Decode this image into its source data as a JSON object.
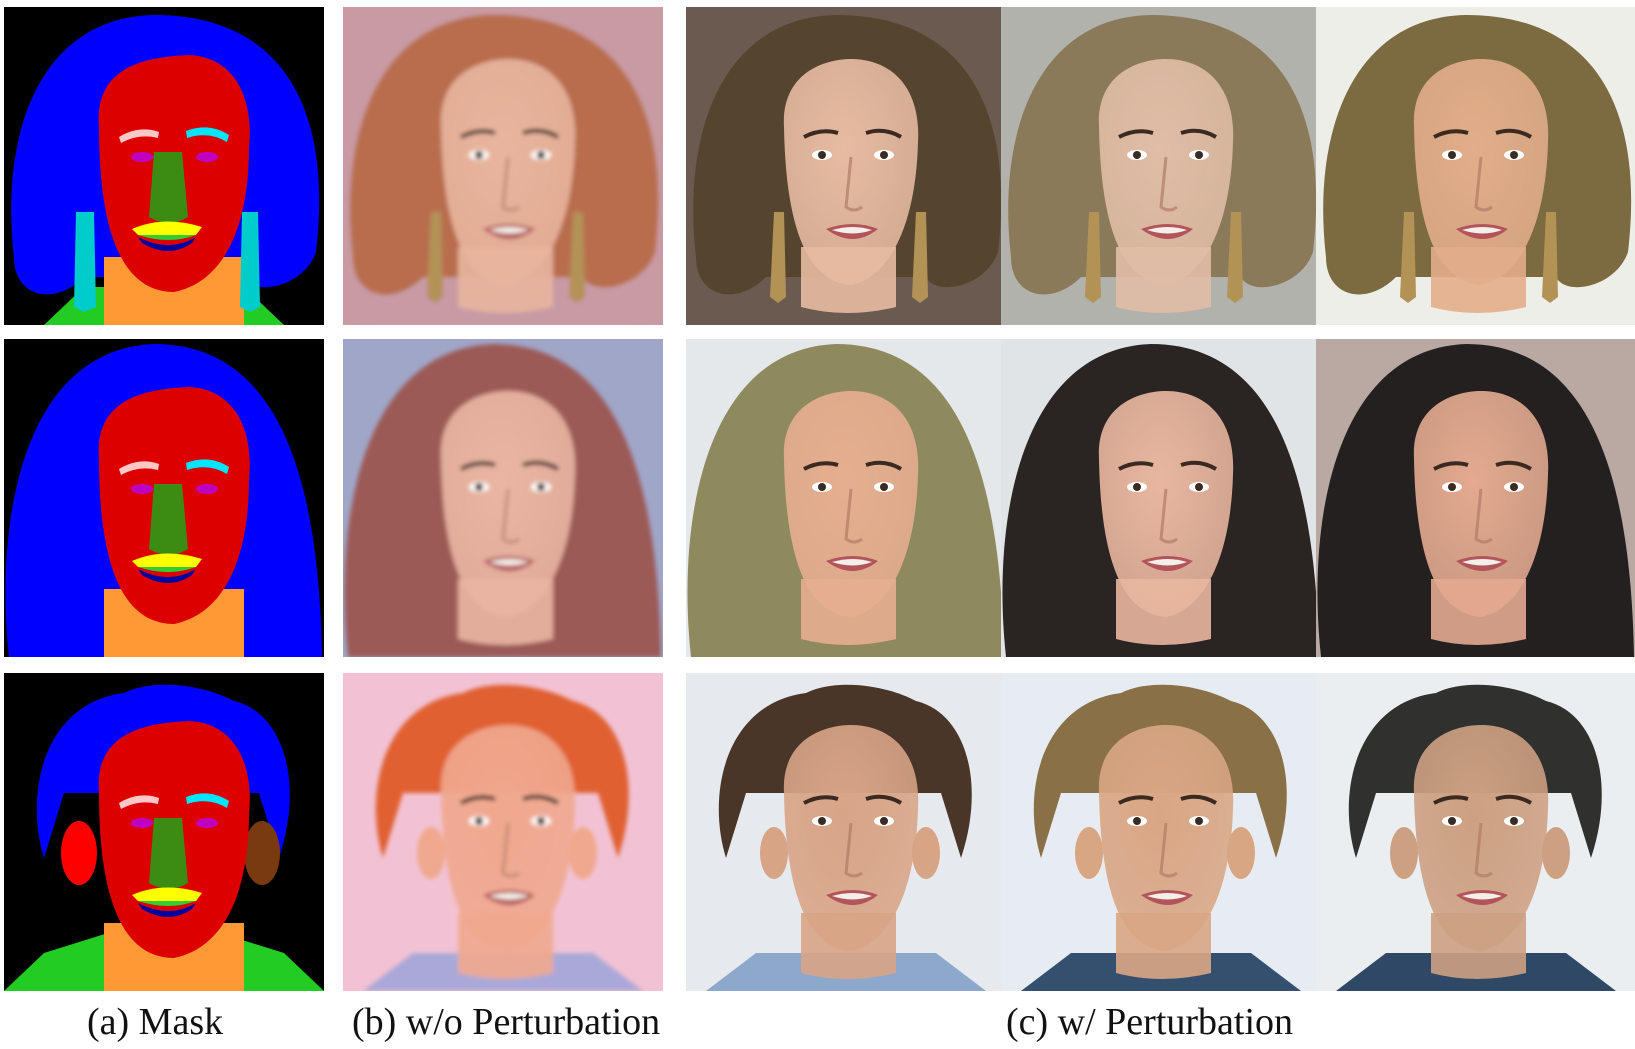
{
  "figure": {
    "captions": {
      "a": "(a) Mask",
      "b": "(b) w/o Perturbation",
      "c": "(c) w/ Perturbation"
    }
  },
  "colors": {
    "mask_background": "#000000",
    "mask_hair": "#0000ff",
    "mask_skin": "#dd0000",
    "mask_nose": "#3c8c14",
    "mask_neck": "#ff9933",
    "mask_cloth": "#22cc22",
    "mask_earring": "#00cccc",
    "mask_ear": "#ff0000",
    "mask_left_brow": "#ffc8c8",
    "mask_right_brow": "#00e6ff",
    "mask_eye": "#c000c0",
    "mask_upper_lip": "#ffff00",
    "mask_lower_lip": "#0000a0",
    "mask_mouth": "#33cc33"
  },
  "rows": [
    {
      "id": "row-1",
      "hair_style": "bob",
      "has_earrings": true,
      "wo_perturbation": {
        "background": "#c89aa4",
        "hair": "#b86d4e",
        "skin": "#e8b59e",
        "cloth": "#c89aa4",
        "blurred": true
      },
      "w_perturbation": [
        {
          "background": "#6b5a50",
          "hair": "#55452f",
          "skin": "#e7bba2",
          "cloth": "#6b5a50"
        },
        {
          "background": "#b2b2ac",
          "hair": "#8a7a5a",
          "skin": "#e0bda6",
          "cloth": "#b2b2ac"
        },
        {
          "background": "#eeeee8",
          "hair": "#7c6a40",
          "skin": "#e2ad8a",
          "cloth": "#eeeee8"
        }
      ]
    },
    {
      "id": "row-2",
      "hair_style": "long",
      "has_earrings": false,
      "wo_perturbation": {
        "background": "#a0a6c8",
        "hair": "#9c5a56",
        "skin": "#eab6a3",
        "cloth": "#3a3044",
        "blurred": true
      },
      "w_perturbation": [
        {
          "background": "#e4e8ea",
          "hair": "#8f8a5e",
          "skin": "#e6ae90",
          "cloth": "#2a2a2a"
        },
        {
          "background": "#e0e4e6",
          "hair": "#2a2422",
          "skin": "#e9b7a0",
          "cloth": "#222222"
        },
        {
          "background": "#b9a9a2",
          "hair": "#252020",
          "skin": "#e3aa90",
          "cloth": "#2a2624"
        }
      ]
    },
    {
      "id": "row-3",
      "hair_style": "short",
      "has_earrings": false,
      "wo_perturbation": {
        "background": "#f2c2d4",
        "hair": "#e06030",
        "skin": "#f0a88e",
        "cloth": "#aaa8d8",
        "blurred": true
      },
      "w_perturbation": [
        {
          "background": "#e6eaee",
          "hair": "#4a3628",
          "skin": "#d8a486",
          "cloth": "#8ea8cc"
        },
        {
          "background": "#e6ecf2",
          "hair": "#8a7046",
          "skin": "#d9a684",
          "cloth": "#34506e"
        },
        {
          "background": "#eaeef0",
          "hair": "#30302e",
          "skin": "#cda082",
          "cloth": "#2e4866"
        }
      ]
    }
  ]
}
